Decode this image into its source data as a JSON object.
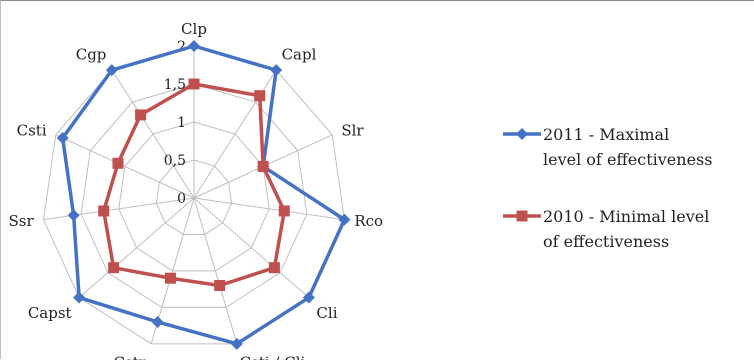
{
  "chart_data": {
    "type": "radar",
    "categories": [
      "Clp",
      "Capl",
      "Slr",
      "Rco",
      "Cli",
      "Csti / Cli",
      "Cstp",
      "Capst",
      "Ssr",
      "Csti",
      "Cgp"
    ],
    "radial_range": [
      0,
      2
    ],
    "ticks": [
      "0",
      "0,5",
      "1",
      "1,5",
      "2"
    ],
    "grid": true,
    "legend_position": "right",
    "series": [
      {
        "name_lines": [
          "2011 - Maximal",
          "level of effectiveness"
        ],
        "color": "#4472c4",
        "marker": "diamond",
        "values": [
          2,
          2,
          1,
          2,
          2,
          2,
          1.7,
          2,
          1.6,
          1.9,
          2
        ]
      },
      {
        "name_lines": [
          "2010 - Minimal level",
          "of effectiveness"
        ],
        "color": "#c0504d",
        "marker": "square",
        "values": [
          1.5,
          1.6,
          1,
          1.2,
          1.4,
          1.2,
          1.1,
          1.4,
          1.2,
          1.1,
          1.3
        ]
      }
    ]
  }
}
